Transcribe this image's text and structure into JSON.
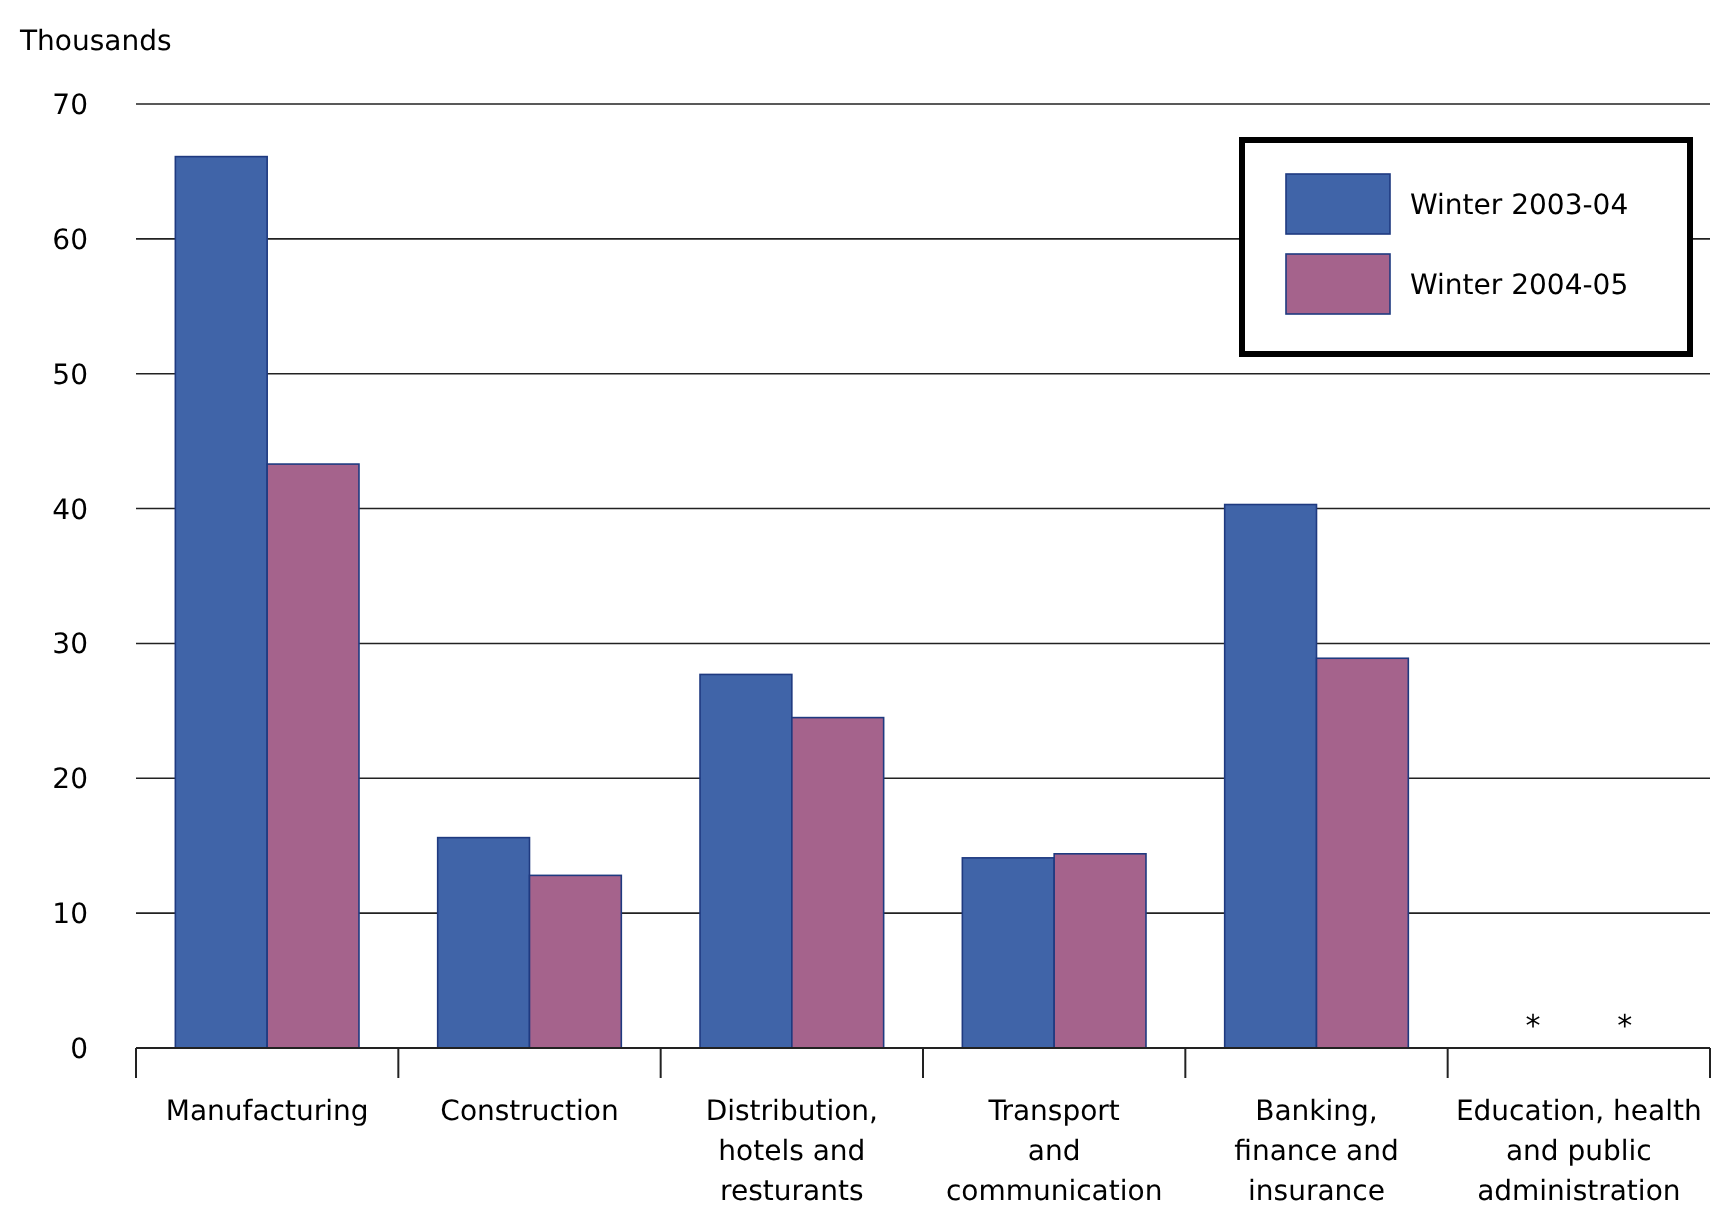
{
  "chart_data": {
    "type": "bar",
    "ylabel": "Thousands",
    "categories": [
      "Manufacturing",
      "Construction",
      "Distribution,\nhotels and\nresturants",
      "Transport\nand\ncommunication",
      "Banking,\nfinance and\ninsurance",
      "Education, health\nand public\nadministration"
    ],
    "series": [
      {
        "name": "Winter 2003-04",
        "color": "#4064a8",
        "values": [
          66.1,
          15.6,
          27.7,
          14.1,
          40.3,
          null
        ],
        "value_labels": [
          null,
          null,
          null,
          null,
          null,
          "*"
        ]
      },
      {
        "name": "Winter 2004-05",
        "color": "#a5638c",
        "values": [
          43.3,
          12.8,
          24.5,
          14.4,
          28.9,
          null
        ],
        "value_labels": [
          null,
          null,
          null,
          null,
          null,
          "*"
        ]
      }
    ],
    "ylim": [
      0,
      70
    ],
    "yticks": [
      0,
      10,
      20,
      30,
      40,
      50,
      60,
      70
    ],
    "grid": "y",
    "legend": "top right"
  }
}
